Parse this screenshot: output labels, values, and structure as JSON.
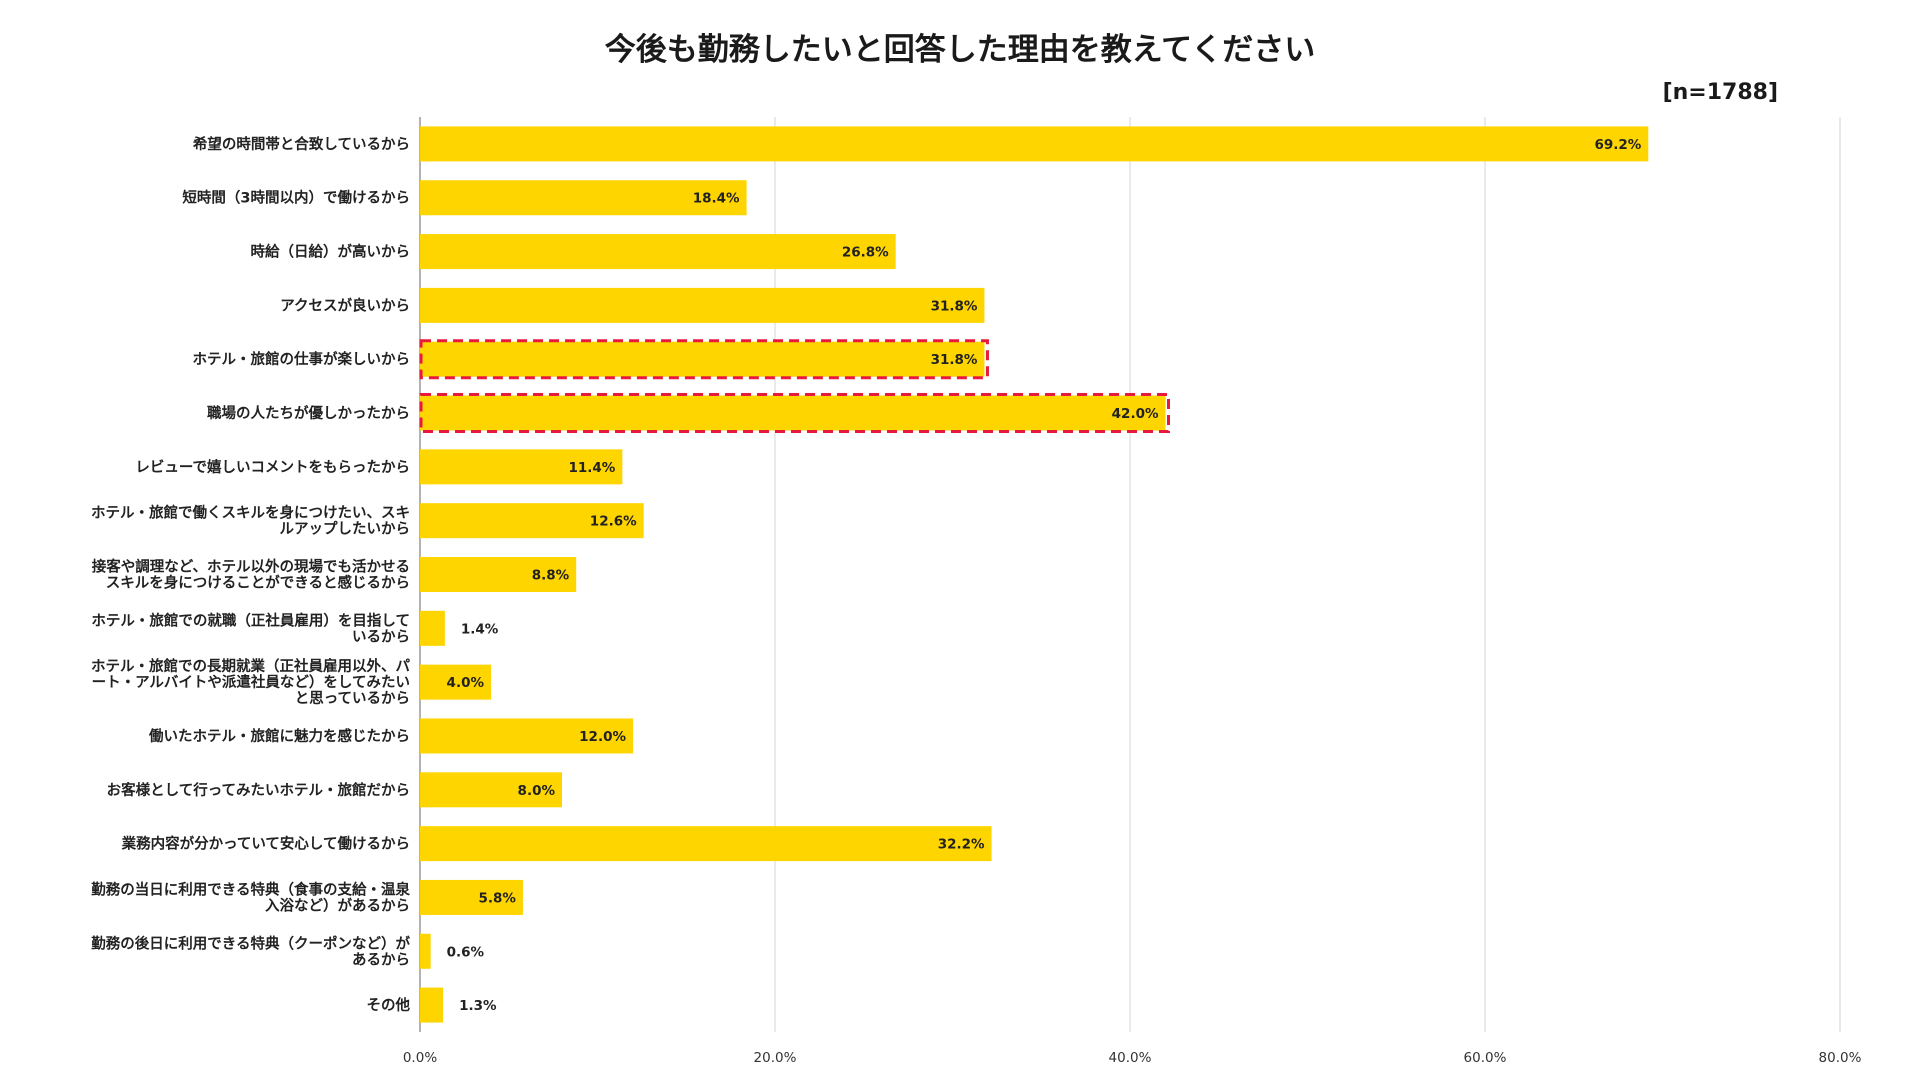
{
  "chart_data": {
    "type": "bar",
    "orientation": "horizontal",
    "title": "今後も勤務したいと回答した理由を教えてください",
    "sample_size": "[n=1788]",
    "categories": [
      [
        "希望の時間帯と合致しているから"
      ],
      [
        "短時間（3時間以内）で働けるから"
      ],
      [
        "時給（日給）が高いから"
      ],
      [
        "アクセスが良いから"
      ],
      [
        "ホテル・旅館の仕事が楽しいから"
      ],
      [
        "職場の人たちが優しかったから"
      ],
      [
        "レビューで嬉しいコメントをもらったから"
      ],
      [
        "ホテル・旅館で働くスキルを身につけたい、スキ",
        "ルアップしたいから"
      ],
      [
        "接客や調理など、ホテル以外の現場でも活かせる",
        "スキルを身につけることができると感じるから"
      ],
      [
        "ホテル・旅館での就職（正社員雇用）を目指して",
        "いるから"
      ],
      [
        "ホテル・旅館での長期就業（正社員雇用以外、パ",
        "ート・アルバイトや派遣社員など）をしてみたい",
        "と思っているから"
      ],
      [
        "働いたホテル・旅館に魅力を感じたから"
      ],
      [
        "お客様として行ってみたいホテル・旅館だから"
      ],
      [
        "業務内容が分かっていて安心して働けるから"
      ],
      [
        "勤務の当日に利用できる特典（食事の支給・温泉",
        "入浴など）があるから"
      ],
      [
        "勤務の後日に利用できる特典（クーポンなど）が",
        "あるから"
      ],
      [
        "その他"
      ]
    ],
    "values": [
      69.2,
      18.4,
      26.8,
      31.8,
      31.8,
      42.0,
      11.4,
      12.6,
      8.8,
      1.4,
      4.0,
      12.0,
      8.0,
      32.2,
      5.8,
      0.6,
      1.3
    ],
    "value_labels": [
      "69.2%",
      "18.4%",
      "26.8%",
      "31.8%",
      "31.8%",
      "42.0%",
      "11.4%",
      "12.6%",
      "8.8%",
      "1.4%",
      "4.0%",
      "12.0%",
      "8.0%",
      "32.2%",
      "5.8%",
      "0.6%",
      "1.3%"
    ],
    "highlighted_indices": [
      4,
      5
    ],
    "xlim": [
      0,
      80
    ],
    "x_ticks": [
      0,
      20,
      40,
      60,
      80
    ],
    "x_tick_labels": [
      "0.0%",
      "20.0%",
      "40.0%",
      "60.0%",
      "80.0%"
    ],
    "grid": true,
    "xlabel": "",
    "ylabel": "",
    "colors": {
      "bar": "#FFD500",
      "highlight_border": "#E8193C",
      "grid": "#e3e3e3",
      "axis": "#9a9a9a"
    }
  }
}
